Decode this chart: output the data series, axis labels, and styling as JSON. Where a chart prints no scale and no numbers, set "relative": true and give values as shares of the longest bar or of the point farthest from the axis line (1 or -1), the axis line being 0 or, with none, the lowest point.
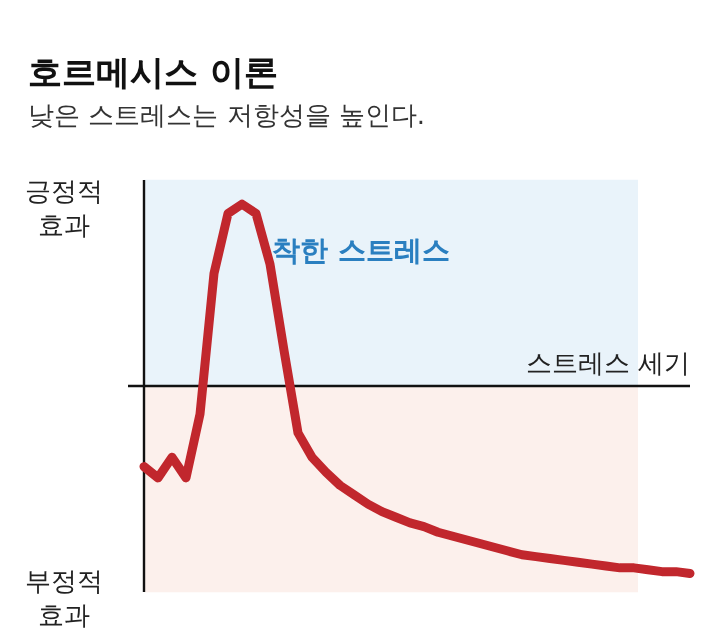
{
  "chart_data": {
    "type": "line",
    "title": "호르메시스 이론",
    "subtitle": "낮은 스트레스는 저항성을 높인다.",
    "xlabel": "스트레스 세기",
    "ylabel": "긍정적 효과",
    "relative": true,
    "categories": [
      null,
      null,
      null,
      null,
      null,
      null,
      null,
      null,
      null,
      null,
      null,
      null,
      null,
      null,
      null,
      null,
      null,
      null,
      null,
      null,
      null,
      null,
      null,
      null,
      null,
      null,
      null,
      null,
      null,
      null,
      null,
      null,
      null,
      null,
      null,
      null,
      null,
      null,
      null,
      null
    ],
    "series": [
      {
        "color": "#c1272d",
        "line_style": "solid",
        "values": [
          -0.43,
          -0.49,
          -0.38,
          -0.49,
          -0.15,
          0.6,
          0.92,
          0.97,
          0.92,
          0.65,
          0.19,
          -0.25,
          -0.38,
          -0.46,
          -0.53,
          -0.58,
          -0.63,
          -0.67,
          -0.7,
          -0.73,
          -0.75,
          -0.78,
          -0.8,
          -0.82,
          -0.84,
          -0.86,
          -0.88,
          -0.9,
          -0.91,
          -0.92,
          -0.93,
          -0.94,
          -0.95,
          -0.96,
          -0.97,
          -0.97,
          -0.98,
          -0.99,
          -0.99,
          -1
        ]
      }
    ],
    "bands": [
      {
        "axis": "y",
        "from": 0,
        "to": 1.1,
        "color": "#e9f3fa"
      },
      {
        "axis": "y",
        "from": -1.1,
        "to": 0,
        "color": "#fcf0ec"
      }
    ],
    "annotations": [
      "착한 스트레스",
      "부정적 효과"
    ]
  }
}
